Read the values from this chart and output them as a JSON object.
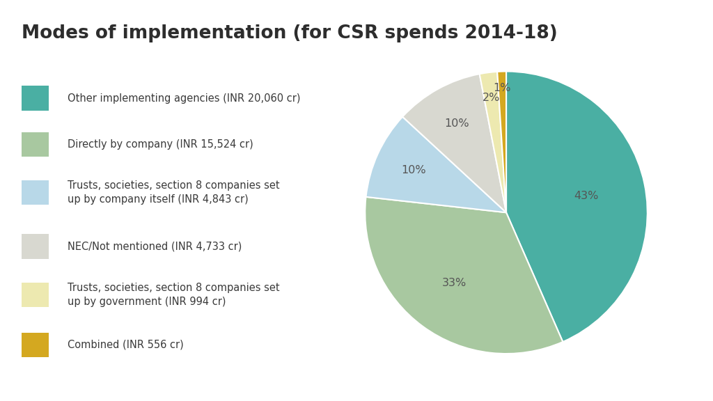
{
  "title": "Modes of implementation (for CSR spends 2014-18)",
  "slices": [
    {
      "label": "Other implementing agencies (INR 20,060 cr)",
      "pct": 43,
      "color": "#4aafa3"
    },
    {
      "label": "Directly by company (INR 15,524 cr)",
      "pct": 33,
      "color": "#a8c8a0"
    },
    {
      "label": "Trusts, societies, section 8 companies set\nup by company itself (INR 4,843 cr)",
      "pct": 10,
      "color": "#b8d8e8"
    },
    {
      "label": "NEC/Not mentioned (INR 4,733 cr)",
      "pct": 10,
      "color": "#d8d8d0"
    },
    {
      "label": "Trusts, societies, section 8 companies set\nup by government (INR 994 cr)",
      "pct": 2,
      "color": "#ede9b0"
    },
    {
      "label": "Combined (INR 556 cr)",
      "pct": 1,
      "color": "#d4a820"
    }
  ],
  "pct_labels": [
    "43%",
    "33%",
    "10%",
    "10%",
    "2%",
    "1%"
  ],
  "background_color": "#ffffff",
  "title_fontsize": 19,
  "title_color": "#2d2d2d",
  "label_fontsize": 10.5,
  "pct_fontsize": 11.5,
  "pct_color": "#555555",
  "startangle": 90
}
